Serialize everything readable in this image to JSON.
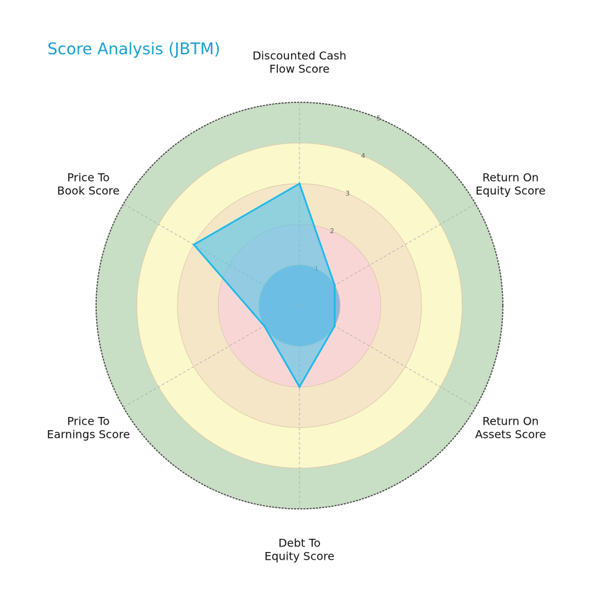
{
  "title": "Score Analysis (JBTM)",
  "chart_data": {
    "type": "radar",
    "title": "Score Analysis (JBTM)",
    "axes": [
      {
        "label_lines": [
          "Discounted Cash",
          "Flow Score"
        ]
      },
      {
        "label_lines": [
          "Return On",
          "Equity Score"
        ]
      },
      {
        "label_lines": [
          "Return On",
          "Assets Score"
        ]
      },
      {
        "label_lines": [
          "Debt To",
          "Equity Score"
        ]
      },
      {
        "label_lines": [
          "Price To",
          "Earnings Score"
        ]
      },
      {
        "label_lines": [
          "Price To",
          "Book Score"
        ]
      }
    ],
    "values": [
      3,
      1,
      1,
      2,
      1,
      3
    ],
    "rlim": [
      0,
      5
    ],
    "r_ticks": [
      "1",
      "2",
      "3",
      "4",
      "5"
    ],
    "bands": [
      {
        "from": 0,
        "to": 1,
        "color": "#8fb3df"
      },
      {
        "from": 1,
        "to": 2,
        "color": "#f9d6d6"
      },
      {
        "from": 2,
        "to": 3,
        "color": "#f6e6c8"
      },
      {
        "from": 3,
        "to": 4,
        "color": "#fbf8cb"
      },
      {
        "from": 4,
        "to": 5,
        "color": "#c9dfc5"
      }
    ],
    "series_color": "#1ab8ea",
    "fill_color": "#5bc4e8"
  }
}
